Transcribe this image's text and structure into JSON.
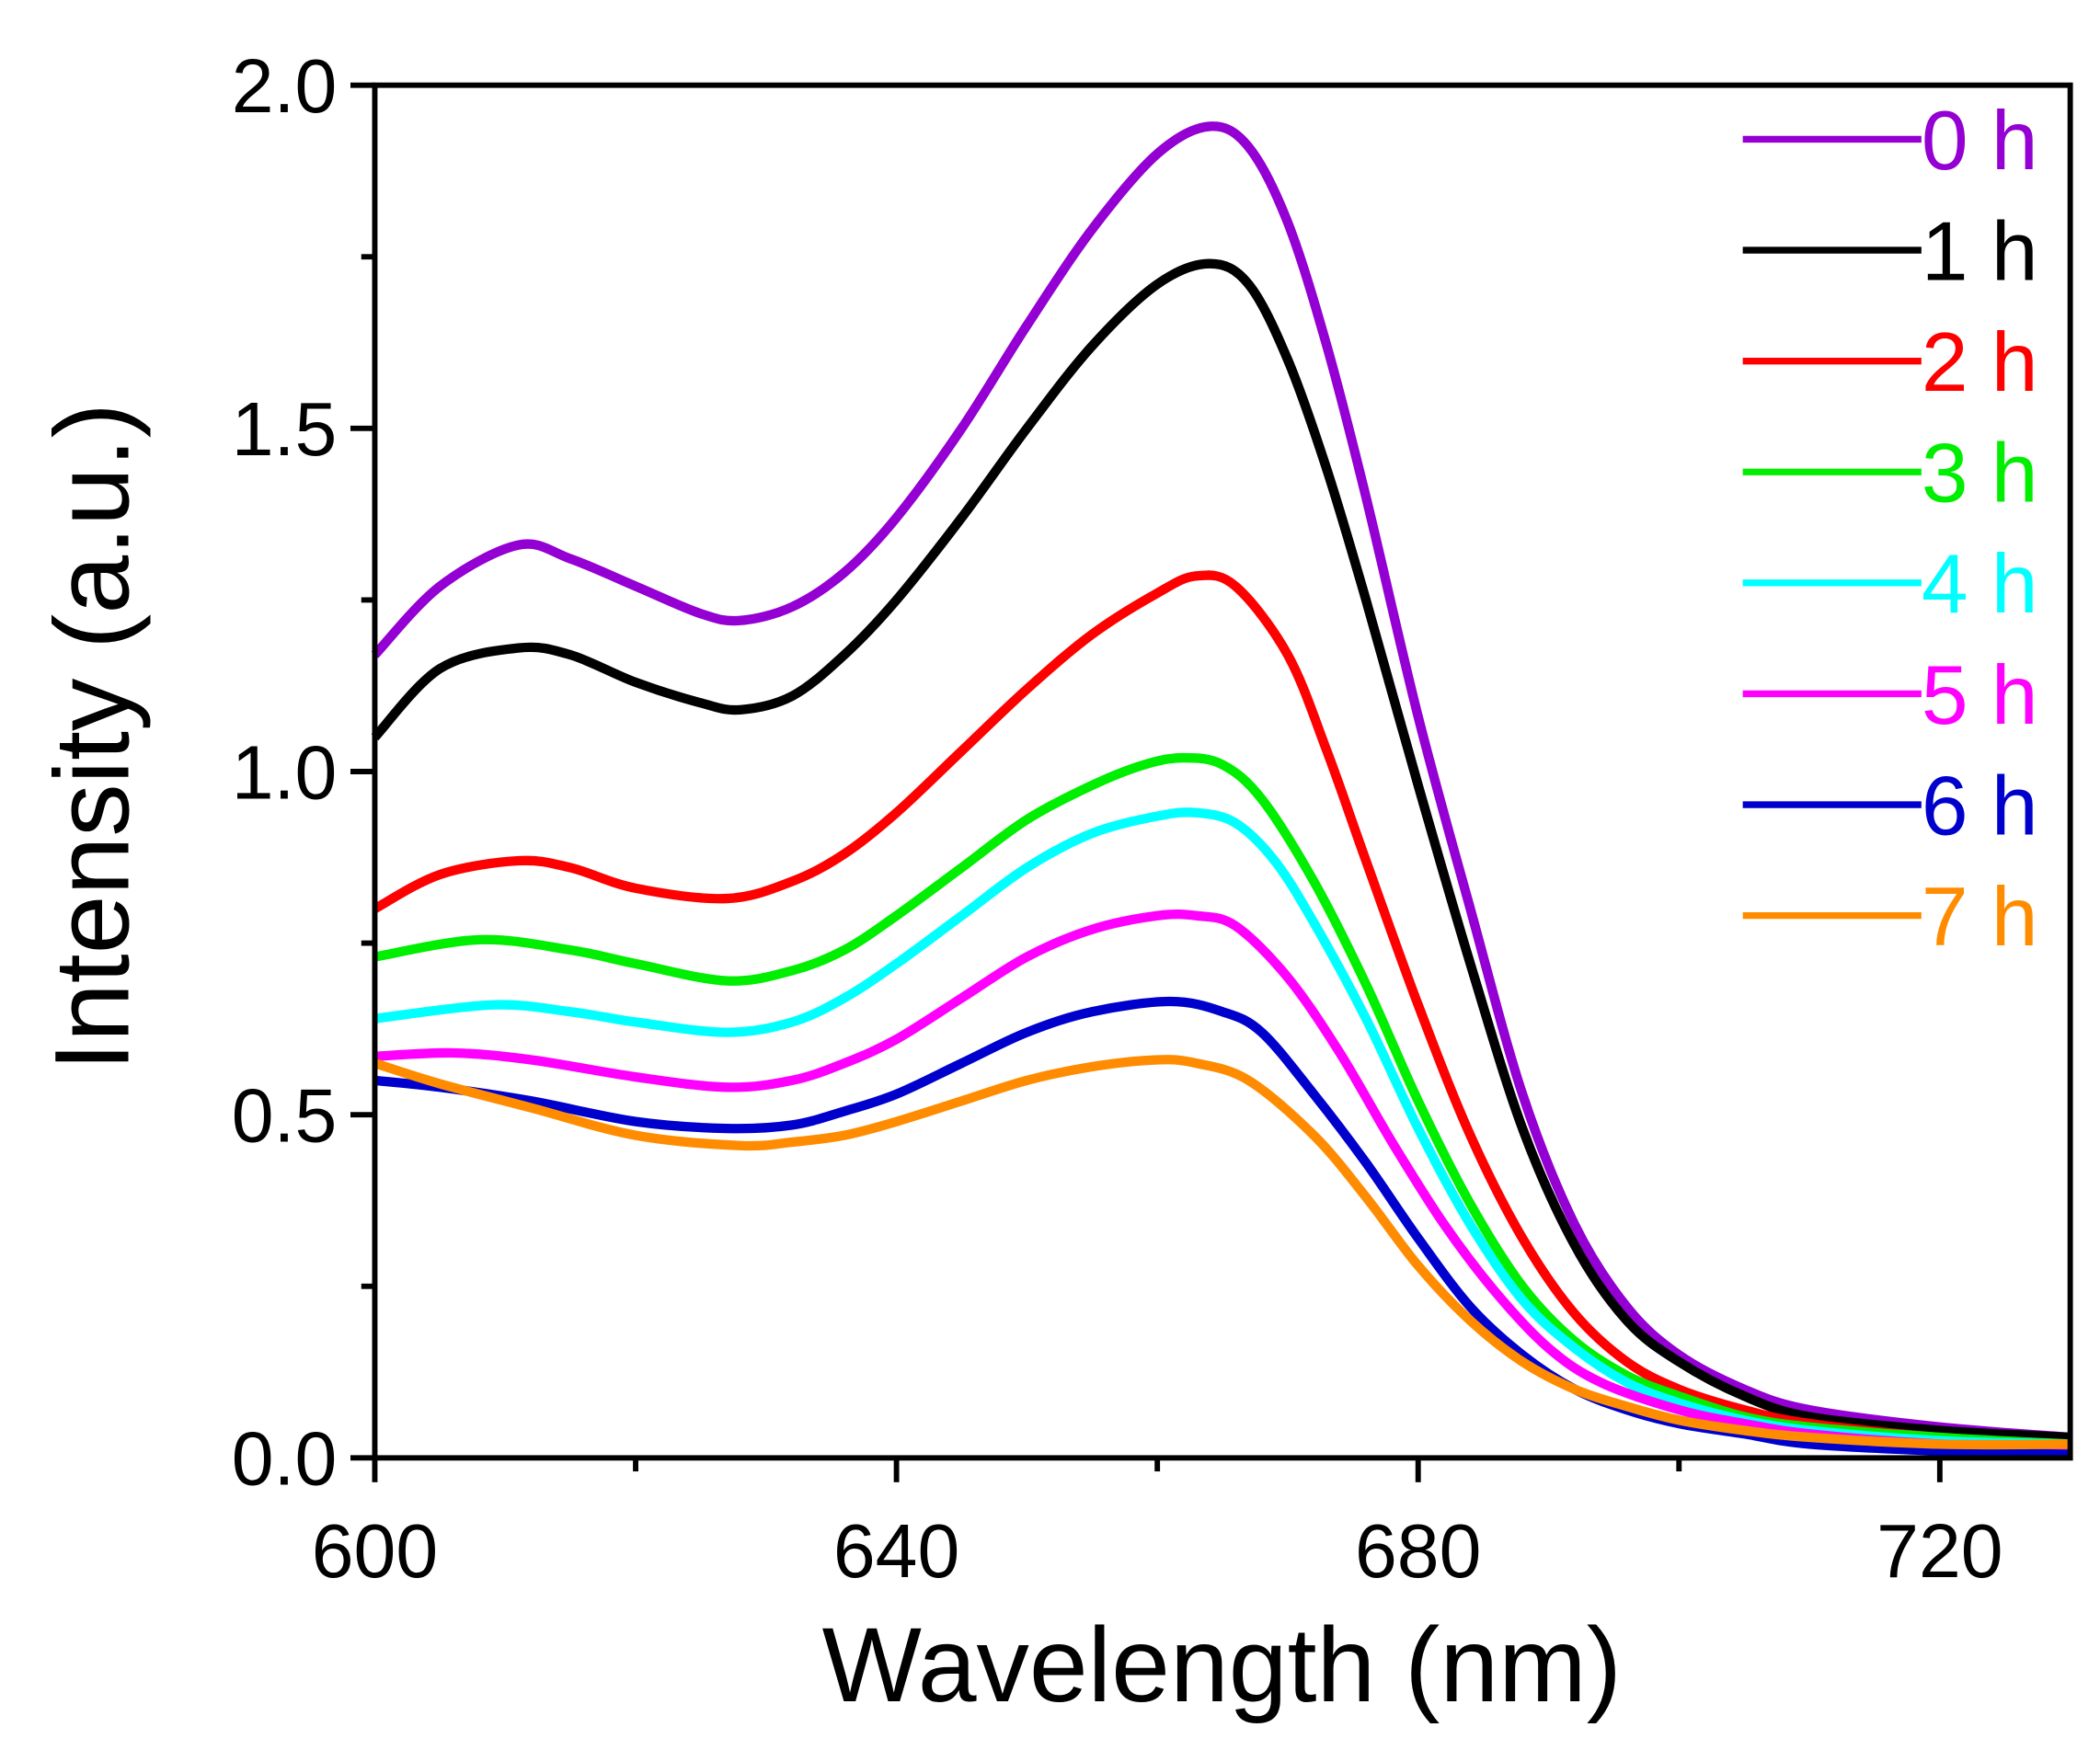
{
  "chart_data": {
    "type": "line",
    "title": "",
    "xlabel": "Wavelength (nm)",
    "ylabel": "Intensity (a.u.)",
    "xlim": [
      600,
      730
    ],
    "ylim": [
      0,
      2.0
    ],
    "xticks": [
      600,
      640,
      680,
      720
    ],
    "xtick_labels": [
      "600",
      "640",
      "680",
      "720"
    ],
    "xminor": [
      620,
      660,
      700
    ],
    "yticks": [
      0,
      0.5,
      1.0,
      1.5,
      2.0
    ],
    "ytick_labels": [
      "0.0",
      "0.5",
      "1.0",
      "1.5",
      "2.0"
    ],
    "yminor": [
      0.25,
      0.75,
      1.25,
      1.75
    ],
    "grid": false,
    "legend_position": "top-right",
    "series": [
      {
        "name": "0 h",
        "color": "#9400D3",
        "x": [
          600,
          605,
          611,
          615,
          620,
          625,
          628,
          632,
          636,
          640,
          645,
          650,
          655,
          660,
          664,
          667,
          670,
          673,
          676,
          680,
          684,
          688,
          692,
          696,
          700,
          705,
          710,
          720,
          730
        ],
        "y": [
          1.17,
          1.27,
          1.33,
          1.31,
          1.27,
          1.23,
          1.22,
          1.24,
          1.29,
          1.37,
          1.5,
          1.65,
          1.79,
          1.9,
          1.94,
          1.91,
          1.8,
          1.62,
          1.4,
          1.08,
          0.8,
          0.53,
          0.34,
          0.22,
          0.15,
          0.1,
          0.07,
          0.045,
          0.03
        ]
      },
      {
        "name": "1 h",
        "color": "#000000",
        "x": [
          600,
          605,
          611,
          615,
          620,
          625,
          628,
          632,
          636,
          640,
          645,
          650,
          655,
          660,
          664,
          667,
          670,
          673,
          676,
          680,
          684,
          688,
          692,
          696,
          700,
          705,
          710,
          720,
          730
        ],
        "y": [
          1.05,
          1.15,
          1.18,
          1.17,
          1.13,
          1.1,
          1.09,
          1.11,
          1.17,
          1.25,
          1.37,
          1.5,
          1.62,
          1.71,
          1.74,
          1.71,
          1.6,
          1.44,
          1.25,
          0.98,
          0.72,
          0.48,
          0.31,
          0.2,
          0.14,
          0.09,
          0.06,
          0.04,
          0.03
        ]
      },
      {
        "name": "2 h",
        "color": "#FF0000",
        "x": [
          600,
          605,
          611,
          615,
          620,
          627,
          632,
          636,
          640,
          645,
          650,
          655,
          660,
          663,
          666,
          670,
          673,
          676,
          680,
          684,
          688,
          692,
          696,
          700,
          705,
          710,
          720,
          730
        ],
        "y": [
          0.8,
          0.85,
          0.87,
          0.86,
          0.83,
          0.815,
          0.84,
          0.88,
          0.94,
          1.03,
          1.12,
          1.2,
          1.26,
          1.285,
          1.27,
          1.17,
          1.03,
          0.87,
          0.66,
          0.47,
          0.32,
          0.21,
          0.14,
          0.1,
          0.07,
          0.05,
          0.03,
          0.02
        ]
      },
      {
        "name": "3 h",
        "color": "#00EE00",
        "x": [
          600,
          608,
          615,
          620,
          627,
          632,
          636,
          640,
          645,
          650,
          655,
          659,
          662,
          665,
          668,
          672,
          676,
          680,
          684,
          688,
          692,
          696,
          700,
          705,
          710,
          720,
          730
        ],
        "y": [
          0.73,
          0.755,
          0.74,
          0.72,
          0.695,
          0.71,
          0.74,
          0.79,
          0.86,
          0.93,
          0.98,
          1.01,
          1.02,
          1.01,
          0.96,
          0.84,
          0.69,
          0.52,
          0.37,
          0.25,
          0.17,
          0.12,
          0.09,
          0.06,
          0.045,
          0.03,
          0.02
        ]
      },
      {
        "name": "4 h",
        "color": "#00FFFF",
        "x": [
          600,
          609,
          615,
          620,
          627,
          632,
          636,
          640,
          645,
          650,
          655,
          660,
          663,
          666,
          669,
          672,
          676,
          680,
          684,
          688,
          692,
          696,
          700,
          705,
          710,
          720,
          730
        ],
        "y": [
          0.64,
          0.66,
          0.65,
          0.635,
          0.62,
          0.635,
          0.67,
          0.72,
          0.79,
          0.86,
          0.91,
          0.935,
          0.94,
          0.925,
          0.87,
          0.78,
          0.64,
          0.48,
          0.34,
          0.23,
          0.16,
          0.11,
          0.08,
          0.055,
          0.04,
          0.025,
          0.02
        ]
      },
      {
        "name": "5 h",
        "color": "#FF00FF",
        "x": [
          600,
          606,
          612,
          620,
          627,
          632,
          636,
          640,
          645,
          650,
          655,
          660,
          663,
          666,
          670,
          674,
          678,
          682,
          686,
          690,
          694,
          700,
          705,
          710,
          720,
          730
        ],
        "y": [
          0.585,
          0.59,
          0.58,
          0.555,
          0.54,
          0.55,
          0.575,
          0.61,
          0.67,
          0.73,
          0.77,
          0.79,
          0.79,
          0.775,
          0.7,
          0.59,
          0.46,
          0.34,
          0.24,
          0.16,
          0.11,
          0.07,
          0.05,
          0.035,
          0.02,
          0.015
        ]
      },
      {
        "name": "6 h",
        "color": "#0000CD",
        "x": [
          600,
          605,
          612,
          620,
          627,
          632,
          636,
          640,
          645,
          650,
          655,
          661,
          665,
          668,
          672,
          676,
          680,
          684,
          688,
          692,
          696,
          700,
          705,
          710,
          720,
          730
        ],
        "y": [
          0.55,
          0.54,
          0.52,
          0.49,
          0.48,
          0.485,
          0.505,
          0.53,
          0.575,
          0.62,
          0.65,
          0.665,
          0.65,
          0.62,
          0.53,
          0.43,
          0.32,
          0.22,
          0.15,
          0.1,
          0.07,
          0.05,
          0.035,
          0.02,
          0.01,
          0.005
        ]
      },
      {
        "name": "7 h",
        "color": "#FF8C00",
        "x": [
          600,
          605,
          612,
          620,
          628,
          632,
          636,
          640,
          645,
          650,
          655,
          660,
          663,
          667,
          672,
          676,
          680,
          684,
          688,
          692,
          696,
          700,
          705,
          710,
          720,
          730
        ],
        "y": [
          0.575,
          0.545,
          0.51,
          0.47,
          0.455,
          0.46,
          0.47,
          0.49,
          0.52,
          0.55,
          0.57,
          0.58,
          0.575,
          0.55,
          0.47,
          0.38,
          0.28,
          0.2,
          0.14,
          0.1,
          0.075,
          0.055,
          0.04,
          0.03,
          0.02,
          0.02
        ]
      }
    ]
  }
}
